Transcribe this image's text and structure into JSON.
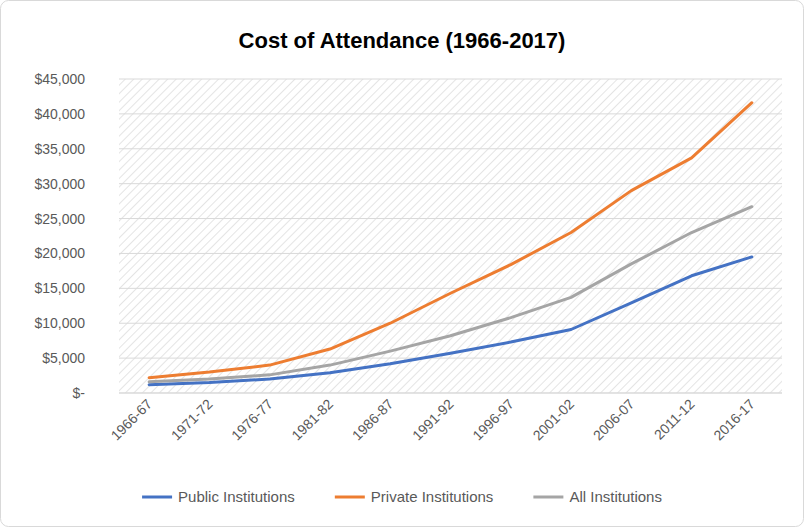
{
  "chart_data": {
    "type": "line",
    "title": "Cost of Attendance (1966-2017)",
    "categories": [
      "1966-67",
      "1971-72",
      "1976-77",
      "1981-82",
      "1986-87",
      "1991-92",
      "1996-97",
      "2001-02",
      "2006-07",
      "2011-12",
      "2016-17"
    ],
    "series": [
      {
        "name": "Public Institutions",
        "color": "#4472c4",
        "values": [
          1200,
          1500,
          2000,
          2900,
          4200,
          5700,
          7300,
          9100,
          12900,
          16800,
          19500
        ]
      },
      {
        "name": "Private Institutions",
        "color": "#ed7d31",
        "values": [
          2200,
          3000,
          4000,
          6300,
          10000,
          14300,
          18400,
          23000,
          29000,
          33700,
          41600
        ]
      },
      {
        "name": "All Institutions",
        "color": "#a5a5a5",
        "values": [
          1600,
          2000,
          2600,
          4000,
          6000,
          8200,
          10800,
          13700,
          18500,
          23000,
          26700
        ]
      }
    ],
    "ylim": [
      0,
      45000
    ],
    "yticks": [
      {
        "value": 0,
        "label": "$-"
      },
      {
        "value": 5000,
        "label": "$5,000"
      },
      {
        "value": 10000,
        "label": "$10,000"
      },
      {
        "value": 15000,
        "label": "$15,000"
      },
      {
        "value": 20000,
        "label": "$20,000"
      },
      {
        "value": 25000,
        "label": "$25,000"
      },
      {
        "value": 30000,
        "label": "$30,000"
      },
      {
        "value": 35000,
        "label": "$35,000"
      },
      {
        "value": 40000,
        "label": "$40,000"
      },
      {
        "value": 45000,
        "label": "$45,000"
      }
    ],
    "grid": true,
    "legend": "bottom"
  }
}
